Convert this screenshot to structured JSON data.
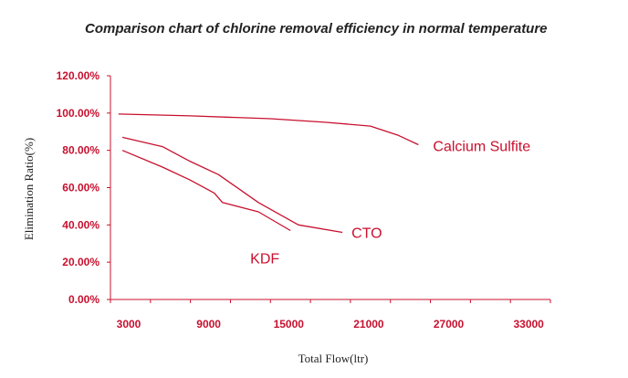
{
  "chart_data": {
    "type": "line",
    "title": "Comparison chart of chlorine removal efficiency in normal temperature",
    "xlabel": "Total Flow(ltr)",
    "ylabel": "Elimination Ratio(%)",
    "xlim": [
      3000,
      36000
    ],
    "ylim": [
      0,
      120
    ],
    "x_ticks": [
      "3000",
      "9000",
      "15000",
      "21000",
      "27000",
      "33000"
    ],
    "y_ticks": [
      "0.00%",
      "20.00%",
      "40.00%",
      "60.00%",
      "80.00%",
      "100.00%",
      "120.00%"
    ],
    "grid": false,
    "legend": "none",
    "accent_color": "#c8102e",
    "series": [
      {
        "name": "Calcium Sulfite",
        "x": [
          3600,
          9000,
          15000,
          19200,
          22500,
          24600,
          26100
        ],
        "y": [
          99.5,
          98.5,
          97,
          95,
          93,
          88,
          83
        ]
      },
      {
        "name": "CTO",
        "x": [
          3900,
          6900,
          9000,
          11100,
          14100,
          17100,
          20400
        ],
        "y": [
          87,
          82,
          74,
          67,
          52,
          40,
          36
        ]
      },
      {
        "name": "KDF",
        "x": [
          3900,
          6900,
          9000,
          10800,
          11400,
          14100,
          16500
        ],
        "y": [
          80,
          71,
          64,
          57,
          52,
          47,
          37
        ]
      }
    ]
  }
}
